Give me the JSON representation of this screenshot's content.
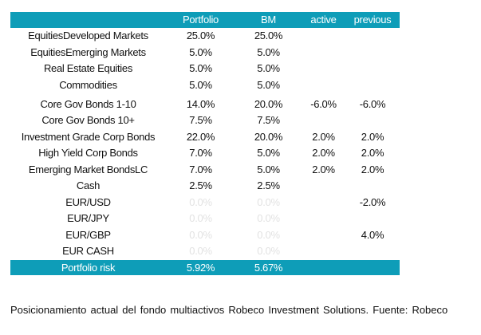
{
  "table": {
    "headers": [
      "",
      "Portfolio",
      "BM",
      "active",
      "previous"
    ],
    "rows": [
      {
        "label": "EquitiesDeveloped Markets",
        "portfolio": "25.0%",
        "bm": "25.0%",
        "active": "",
        "previous": ""
      },
      {
        "label": "EquitiesEmerging Markets",
        "portfolio": "5.0%",
        "bm": "5.0%",
        "active": "",
        "previous": ""
      },
      {
        "label": "Real Estate Equities",
        "portfolio": "5.0%",
        "bm": "5.0%",
        "active": "",
        "previous": ""
      },
      {
        "label": "Commodities",
        "portfolio": "5.0%",
        "bm": "5.0%",
        "active": "",
        "previous": ""
      },
      {
        "label": "Core Gov Bonds 1-10",
        "portfolio": "14.0%",
        "bm": "20.0%",
        "active": "-6.0%",
        "previous": "-6.0%"
      },
      {
        "label": "Core Gov Bonds 10+",
        "portfolio": "7.5%",
        "bm": "7.5%",
        "active": "",
        "previous": ""
      },
      {
        "label": "Investment Grade Corp Bonds",
        "portfolio": "22.0%",
        "bm": "20.0%",
        "active": "2.0%",
        "previous": "2.0%"
      },
      {
        "label": "High Yield Corp Bonds",
        "portfolio": "7.0%",
        "bm": "5.0%",
        "active": "2.0%",
        "previous": "2.0%"
      },
      {
        "label": "Emerging Market BondsLC",
        "portfolio": "7.0%",
        "bm": "5.0%",
        "active": "2.0%",
        "previous": "2.0%"
      },
      {
        "label": "Cash",
        "portfolio": "2.5%",
        "bm": "2.5%",
        "active": "",
        "previous": ""
      },
      {
        "label": "EUR/USD",
        "portfolio": "0.0%",
        "bm": "0.0%",
        "active": "",
        "previous": "-2.0%"
      },
      {
        "label": "EUR/JPY",
        "portfolio": "0.0%",
        "bm": "0.0%",
        "active": "",
        "previous": ""
      },
      {
        "label": "EUR/GBP",
        "portfolio": "0.0%",
        "bm": "0.0%",
        "active": "",
        "previous": "4.0%"
      },
      {
        "label": "EUR CASH",
        "portfolio": "0.0%",
        "bm": "0.0%",
        "active": "",
        "previous": ""
      }
    ],
    "footer": {
      "label": "Portfolio risk",
      "portfolio": "5.92%",
      "bm": "5.67%"
    }
  },
  "caption": "Posicionamiento actual del fondo multiactivos Robeco Investment Solutions. Fuente: Robeco",
  "colors": {
    "header_bg": "#0e9db8",
    "header_text": "#ffffff",
    "zero_text": "#e2e2e2"
  }
}
